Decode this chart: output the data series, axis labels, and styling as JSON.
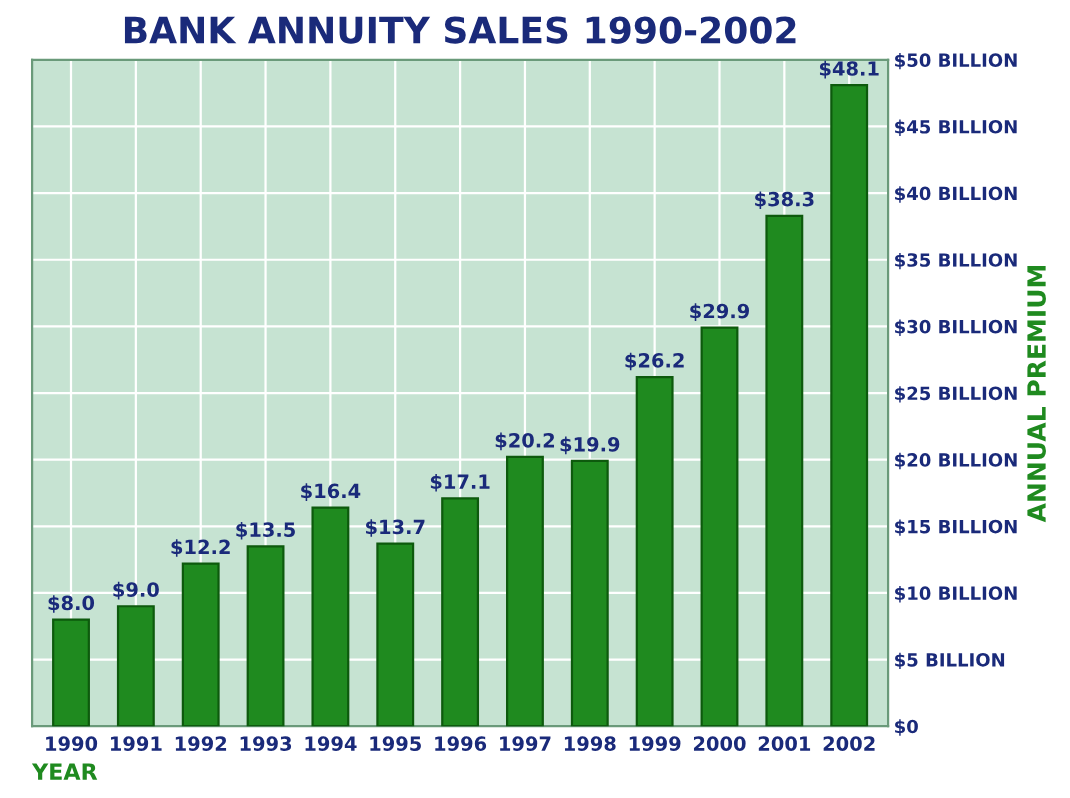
{
  "chart_data": {
    "type": "bar",
    "title": "BANK ANNUITY SALES 1990-2002",
    "xlabel": "YEAR",
    "ylabel": "ANNUAL PREMIUM",
    "categories": [
      "1990",
      "1991",
      "1992",
      "1993",
      "1994",
      "1995",
      "1996",
      "1997",
      "1998",
      "1999",
      "2000",
      "2001",
      "2002"
    ],
    "values": [
      8.0,
      9.0,
      12.2,
      13.5,
      16.4,
      13.7,
      17.1,
      20.2,
      19.9,
      26.2,
      29.9,
      38.3,
      48.1
    ],
    "value_labels": [
      "$8.0",
      "$9.0",
      "$12.2",
      "$13.5",
      "$16.4",
      "$13.7",
      "$17.1",
      "$20.2",
      "$19.9",
      "$26.2",
      "$29.9",
      "$38.3",
      "$48.1"
    ],
    "color": "#1f8a1f",
    "ylim": [
      0,
      50
    ],
    "yticks": [
      {
        "value": 0,
        "label": "$0"
      },
      {
        "value": 5,
        "label": "$5 BILLION"
      },
      {
        "value": 10,
        "label": "$10 BILLION"
      },
      {
        "value": 15,
        "label": "$15 BILLION"
      },
      {
        "value": 20,
        "label": "$20 BILLION"
      },
      {
        "value": 25,
        "label": "$25 BILLION"
      },
      {
        "value": 30,
        "label": "$30 BILLION"
      },
      {
        "value": 35,
        "label": "$35 BILLION"
      },
      {
        "value": 40,
        "label": "$40 BILLION"
      },
      {
        "value": 45,
        "label": "$45 BILLION"
      },
      {
        "value": 50,
        "label": "$50 BILLION"
      }
    ],
    "grid": true
  }
}
